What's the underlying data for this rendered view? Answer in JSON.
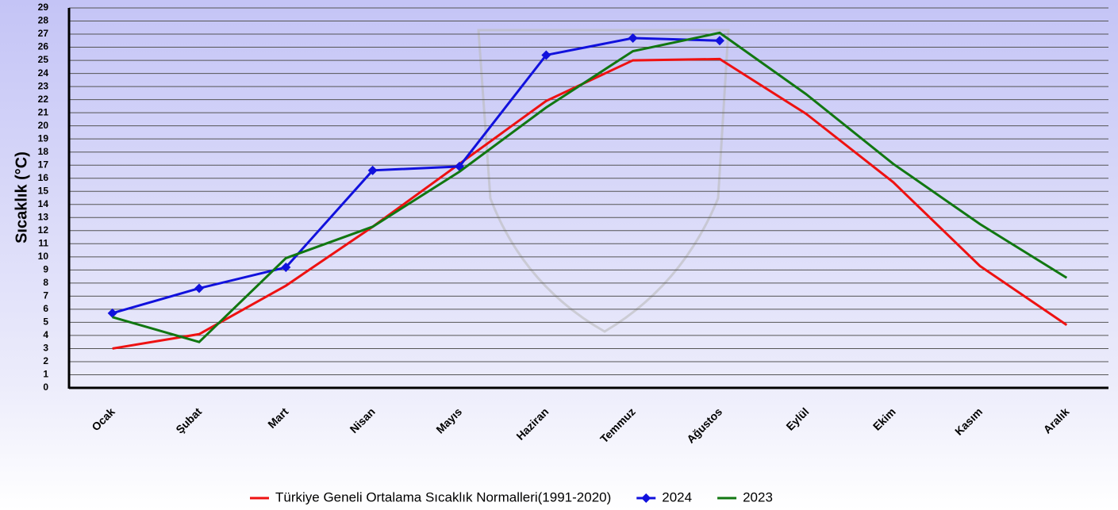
{
  "chart_data": {
    "type": "line",
    "y_label": "Sıcaklık (°C)",
    "categories": [
      "Ocak",
      "Şubat",
      "Mart",
      "Nisan",
      "Mayıs",
      "Haziran",
      "Temmuz",
      "Ağustos",
      "Eylül",
      "Ekim",
      "Kasım",
      "Aralık"
    ],
    "series": [
      {
        "name": "Türkiye Geneli Ortalama Sıcaklık Normalleri(1991-2020)",
        "color": "#ee1111",
        "marker": "none",
        "values": [
          3.0,
          4.1,
          7.8,
          12.3,
          17.1,
          21.9,
          25.0,
          25.1,
          20.9,
          15.7,
          9.3,
          4.8
        ]
      },
      {
        "name": "2024",
        "color": "#1111dd",
        "marker": "diamond",
        "values": [
          5.7,
          7.6,
          9.2,
          16.6,
          16.9,
          25.4,
          26.7,
          26.5,
          null,
          null,
          null,
          null
        ]
      },
      {
        "name": "2023",
        "color": "#117711",
        "marker": "none",
        "values": [
          5.4,
          3.5,
          9.9,
          12.3,
          16.5,
          21.4,
          25.7,
          27.1,
          22.4,
          17.1,
          12.5,
          8.4
        ]
      }
    ],
    "ylim": [
      0,
      29
    ],
    "yticks": [
      0,
      1,
      2,
      3,
      4,
      5,
      6,
      7,
      8,
      9,
      10,
      11,
      12,
      13,
      14,
      15,
      16,
      17,
      18,
      19,
      20,
      21,
      22,
      23,
      24,
      25,
      26,
      27,
      28,
      29
    ],
    "grid": true,
    "legend": "bottom"
  }
}
